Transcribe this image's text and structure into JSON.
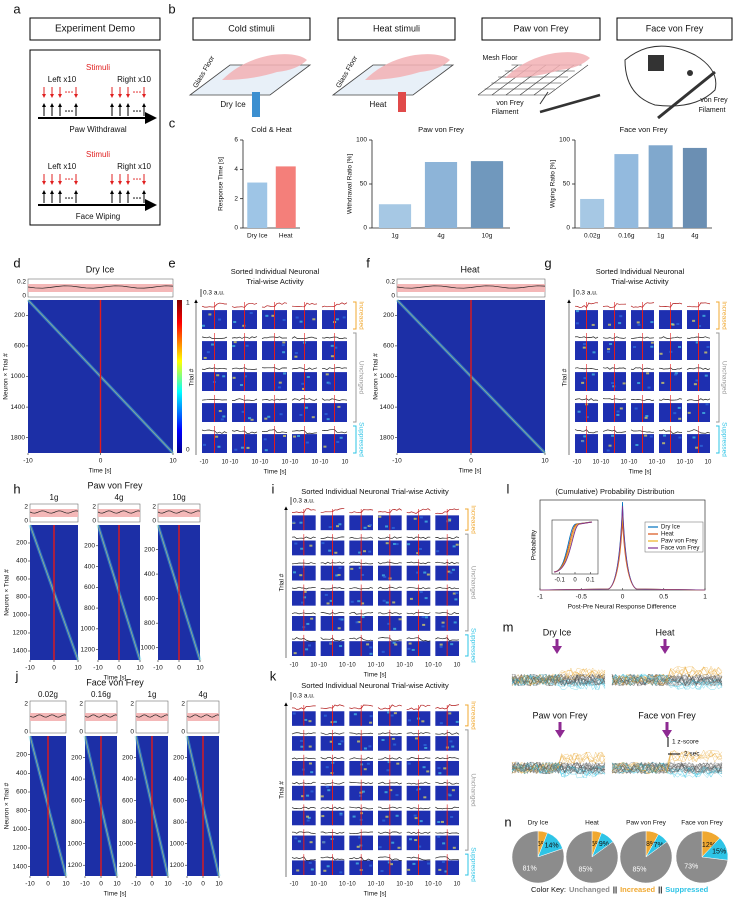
{
  "panel_letters": [
    "a",
    "b",
    "c",
    "d",
    "e",
    "f",
    "g",
    "h",
    "i",
    "j",
    "k",
    "l",
    "m",
    "n"
  ],
  "a": {
    "title": "Experiment Demo",
    "paw": {
      "stimuli": "Stimuli",
      "left": "Left x10",
      "right": "Right x10",
      "label": "Paw Withdrawal"
    },
    "face": {
      "stimuli": "Stimuli",
      "left": "Left x10",
      "right": "Right x10",
      "label": "Face Wiping"
    }
  },
  "b": {
    "boxes": [
      "Cold stimuli",
      "Heat stimuli",
      "Paw von Frey",
      "Face von Frey"
    ],
    "glass_floor": "Glass Floor",
    "dry_ice": "Dry Ice",
    "heat": "Heat",
    "mesh_floor": "Mesh Floor",
    "von_frey": "von Frey",
    "filament": "Filament"
  },
  "chart_data": [
    {
      "type": "bar",
      "title": "Cold & Heat",
      "y_label": "Response Time [s]",
      "categories": [
        "Dry Ice",
        "Heat"
      ],
      "values": [
        3.1,
        4.2
      ],
      "colors": [
        "#9ec5e6",
        "#f47f7a"
      ],
      "ylim": [
        0,
        6
      ],
      "yticks": [
        0,
        2,
        4,
        6
      ]
    },
    {
      "type": "bar",
      "title": "Paw von Frey",
      "y_label": "Withdrawal Ratio [%]",
      "categories": [
        "1g",
        "4g",
        "10g"
      ],
      "values": [
        27,
        75,
        76
      ],
      "colors": [
        "#a6c8e4",
        "#8db4d8",
        "#7098bd"
      ],
      "ylim": [
        0,
        100
      ],
      "yticks": [
        0,
        50,
        100
      ]
    },
    {
      "type": "bar",
      "title": "Face von Frey",
      "y_label": "Wiping Ratio [%]",
      "categories": [
        "0.02g",
        "0.16g",
        "1g",
        "4g"
      ],
      "values": [
        33,
        84,
        94,
        91
      ],
      "colors": [
        "#a6c8e4",
        "#93bade",
        "#80a8cd",
        "#6b8fb3"
      ],
      "ylim": [
        0,
        100
      ],
      "yticks": [
        0,
        50,
        100
      ]
    },
    {
      "type": "pie",
      "title": "Dry Ice",
      "values": [
        81,
        6,
        14
      ],
      "value_labels": [
        "81%",
        "6%",
        "14%"
      ],
      "colors": [
        "#8c8c8c",
        "#f0a830",
        "#2ec4e6"
      ]
    },
    {
      "type": "pie",
      "title": "Heat",
      "values": [
        85,
        6,
        9
      ],
      "value_labels": [
        "85%",
        "6%",
        "9%"
      ],
      "colors": [
        "#8c8c8c",
        "#f0a830",
        "#2ec4e6"
      ]
    },
    {
      "type": "pie",
      "title": "Paw von Frey",
      "values": [
        85,
        8,
        7
      ],
      "value_labels": [
        "85%",
        "8%",
        "7%"
      ],
      "colors": [
        "#8c8c8c",
        "#f0a830",
        "#2ec4e6"
      ]
    },
    {
      "type": "pie",
      "title": "Face von Frey",
      "values": [
        73,
        12,
        15
      ],
      "value_labels": [
        "73%",
        "12%",
        "15%"
      ],
      "colors": [
        "#8c8c8c",
        "#f0a830",
        "#2ec4e6"
      ]
    }
  ],
  "d": {
    "title": "Dry Ice",
    "trace_ticks": [
      0.2,
      0
    ],
    "ylabel": "Neuron × Trial #",
    "xlabel": "Time [s]",
    "xlim": [
      -10,
      10
    ],
    "xticks": [
      -10,
      0,
      10
    ],
    "columns": [
      {
        "ylim": [
          0,
          2000
        ],
        "yticks": [
          200,
          600,
          1000,
          1400,
          1800
        ]
      }
    ],
    "colorbar_ticks": [
      1,
      0
    ]
  },
  "e": {
    "title": [
      "Sorted Individual Neuronal",
      "Trial-wise Activity"
    ],
    "scale": "0.3 a.u.",
    "ylabel": "Trial #",
    "xlabel": "Time [s]",
    "xticks": [
      -10,
      10
    ],
    "groups": [
      "Increased",
      "Unchanged",
      "Suppressed"
    ]
  },
  "f": {
    "title": "Heat",
    "trace_ticks": [
      0.2,
      0
    ],
    "ylabel": "Neuron × Trial #",
    "xlabel": "Time [s]",
    "xlim": [
      -10,
      10
    ],
    "xticks": [
      -10,
      0,
      10
    ],
    "columns": [
      {
        "ylim": [
          0,
          2000
        ],
        "yticks": [
          200,
          600,
          1000,
          1400,
          1800
        ]
      }
    ]
  },
  "g": {
    "title": [
      "Sorted Individual Neuronal",
      "Trial-wise Activity"
    ],
    "scale": "0.3 a.u.",
    "ylabel": "Trial #",
    "xlabel": "Time [s]",
    "xticks": [
      -10,
      10
    ],
    "groups": [
      "Increased",
      "Unchanged",
      "Suppressed"
    ]
  },
  "h": {
    "title": "Paw von Frey",
    "trace_ticks": [
      2,
      0
    ],
    "ylabel": "Neuron × Trial #",
    "xlabel": "Time [s]",
    "xlim": [
      -10,
      10
    ],
    "xticks": [
      -10,
      0,
      10
    ],
    "columns": [
      {
        "label": "1g",
        "ylim": [
          0,
          1500
        ],
        "yticks": [
          200,
          400,
          600,
          800,
          1000,
          1200,
          1400
        ]
      },
      {
        "label": "4g",
        "ylim": [
          0,
          1300
        ],
        "yticks": [
          200,
          400,
          600,
          800,
          1000,
          1200
        ]
      },
      {
        "label": "10g",
        "ylim": [
          0,
          1100
        ],
        "yticks": [
          200,
          400,
          600,
          800,
          1000
        ]
      }
    ]
  },
  "i": {
    "title": "Sorted Individual Neuronal Trial-wise Activity",
    "scale": "0.3 a.u.",
    "ylabel": "Trial #",
    "xlabel": "Time [s]",
    "xticks": [
      -10,
      10
    ],
    "groups": [
      "Increased",
      "Unchanged",
      "Suppressed"
    ]
  },
  "j": {
    "title": "Face von Frey",
    "trace_ticks": [
      2,
      0
    ],
    "ylabel": "Neuron × Trial #",
    "xlabel": "Time [s]",
    "xlim": [
      -10,
      10
    ],
    "xticks": [
      -10,
      0,
      10
    ],
    "columns": [
      {
        "label": "0.02g",
        "ylim": [
          0,
          1500
        ],
        "yticks": [
          200,
          400,
          600,
          800,
          1000,
          1200,
          1400
        ]
      },
      {
        "label": "0.16g",
        "ylim": [
          0,
          1300
        ],
        "yticks": [
          200,
          400,
          600,
          800,
          1000,
          1200
        ]
      },
      {
        "label": "1g",
        "ylim": [
          0,
          1300
        ],
        "yticks": [
          200,
          400,
          600,
          800,
          1000,
          1200
        ]
      },
      {
        "label": "4g",
        "ylim": [
          0,
          1300
        ],
        "yticks": [
          200,
          400,
          600,
          800,
          1000,
          1200
        ]
      }
    ]
  },
  "k": {
    "title": "Sorted Individual Neuronal Trial-wise Activity",
    "scale": "0.3 a.u.",
    "ylabel": "Trial #",
    "xlabel": "Time [s]",
    "xticks": [
      -10,
      10
    ],
    "groups": [
      "Increased",
      "Unchanged",
      "Suppressed"
    ]
  },
  "l": {
    "title": "(Cumulative) Probability Distribution",
    "ylabel": "Probability",
    "xlabel": "Post-Pre Neural Response Difference",
    "xlim": [
      -1,
      1
    ],
    "xticks": [
      -1,
      -0.5,
      0,
      0.5,
      1
    ],
    "inset_xlim": [
      -0.15,
      0.15
    ],
    "inset_xticks": [
      -0.1,
      0,
      0.1
    ],
    "legend": [
      {
        "name": "Dry Ice",
        "color": "#0072bd"
      },
      {
        "name": "Heat",
        "color": "#d95319"
      },
      {
        "name": "Paw von Frey",
        "color": "#edb120"
      },
      {
        "name": "Face von Frey",
        "color": "#7e2f8e"
      }
    ]
  },
  "m": {
    "labels": [
      "Dry Ice",
      "Heat",
      "Paw von Frey",
      "Face von Frey"
    ],
    "scale_y": "1 z-score",
    "scale_x": "2 sec"
  },
  "n": {
    "key": "Color Key:",
    "sep": "||",
    "unchanged": "Unchanged",
    "increased": "Increased",
    "suppressed": "Suppressed"
  }
}
